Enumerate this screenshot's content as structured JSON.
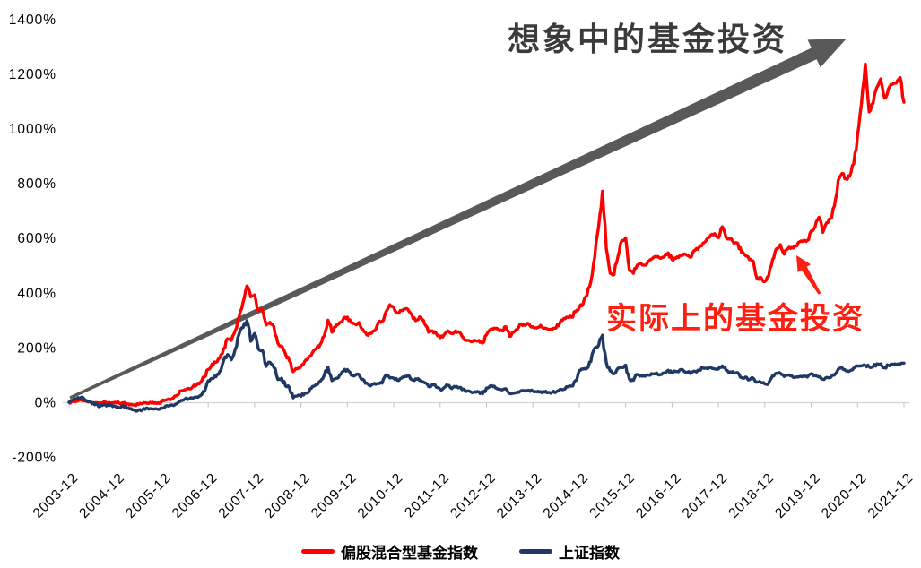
{
  "chart_data": {
    "type": "line",
    "title": "",
    "y_unit": "%",
    "ylim": [
      -200,
      1400
    ],
    "y_step": 200,
    "y_tick_labels": [
      "1400%",
      "1200%",
      "1000%",
      "800%",
      "600%",
      "400%",
      "200%",
      "0%",
      "-200%"
    ],
    "x_tick_labels": [
      "2003-12",
      "2004-12",
      "2005-12",
      "2006-12",
      "2007-12",
      "2008-12",
      "2009-12",
      "2010-12",
      "2011-12",
      "2012-12",
      "2013-12",
      "2014-12",
      "2015-12",
      "2016-12",
      "2017-12",
      "2018-12",
      "2019-12",
      "2020-12",
      "2021-12"
    ],
    "x_interval": "monthly",
    "x_start": "2003-12",
    "x_end": "2021-12",
    "grid": false,
    "legend_position": "bottom",
    "series": [
      {
        "name": "偏股混合型基金指数",
        "color": "#FF0000",
        "values": [
          0,
          3,
          7,
          9,
          5,
          1,
          -2,
          -1,
          -4,
          1,
          -3,
          -2,
          0,
          -4,
          -2,
          -6,
          -8,
          -10,
          -8,
          -5,
          -2,
          0,
          -4,
          -2,
          3,
          8,
          12,
          16,
          26,
          42,
          46,
          50,
          56,
          63,
          73,
          92,
          120,
          140,
          146,
          162,
          196,
          232,
          226,
          262,
          312,
          365,
          425,
          385,
          392,
          335,
          338,
          282,
          292,
          276,
          216,
          206,
          176,
          152,
          112,
          122,
          131,
          150,
          166,
          182,
          196,
          212,
          242,
          300,
          256,
          276,
          291,
          306,
          311,
          291,
          286,
          291,
          266,
          246,
          251,
          261,
          291,
          296,
          331,
          356,
          346,
          326,
          336,
          341,
          331,
          306,
          301,
          311,
          286,
          256,
          261,
          251,
          236,
          246,
          261,
          251,
          261,
          256,
          236,
          226,
          221,
          226,
          226,
          216,
          246,
          266,
          271,
          266,
          261,
          276,
          241,
          256,
          266,
          286,
          281,
          286,
          276,
          271,
          281,
          271,
          266,
          266,
          271,
          291,
          306,
          311,
          311,
          331,
          346,
          361,
          391,
          441,
          531,
          641,
          771,
          561,
          471,
          466,
          531,
          591,
          601,
          481,
          471,
          501,
          506,
          501,
          516,
          526,
          531,
          526,
          531,
          546,
          521,
          526,
          536,
          541,
          536,
          531,
          556,
          566,
          581,
          596,
          611,
          616,
          601,
          641,
          601,
          596,
          581,
          581,
          546,
          536,
          521,
          516,
          451,
          456,
          441,
          461,
          521,
          561,
          576,
          541,
          561,
          566,
          571,
          586,
          591,
          591,
          626,
          641,
          676,
          621,
          656,
          671,
          716,
          811,
          836,
          816,
          826,
          871,
          976,
          1091,
          1236,
          1061,
          1091,
          1151,
          1181,
          1111,
          1146,
          1161,
          1166,
          1186,
          1096
        ]
      },
      {
        "name": "上证指数",
        "color": "#1F3864",
        "values": [
          0,
          7,
          12,
          17,
          10,
          2,
          -6,
          -6,
          -15,
          -7,
          -11,
          -10,
          -15,
          -21,
          -12,
          -22,
          -23,
          -30,
          -28,
          -27,
          -21,
          -23,
          -25,
          -26,
          -22,
          -13,
          -13,
          -12,
          -4,
          7,
          12,
          12,
          14,
          19,
          25,
          39,
          79,
          87,
          93,
          113,
          153,
          174,
          155,
          194,
          249,
          273,
          298,
          223,
          251,
          194,
          190,
          131,
          146,
          127,
          83,
          88,
          60,
          54,
          16,
          23,
          22,
          33,
          37,
          58,
          66,
          77,
          98,
          128,
          79,
          87,
          99,
          115,
          119,
          99,
          98,
          101,
          84,
          70,
          60,
          69,
          69,
          70,
          100,
          89,
          88,
          80,
          88,
          95,
          96,
          81,
          84,
          80,
          71,
          58,
          66,
          55,
          47,
          53,
          62,
          50,
          56,
          54,
          48,
          41,
          37,
          39,
          38,
          31,
          52,
          60,
          59,
          48,
          45,
          49,
          32,
          33,
          38,
          43,
          41,
          44,
          41,
          38,
          39,
          37,
          36,
          37,
          37,
          47,
          47,
          56,
          59,
          79,
          116,
          121,
          124,
          149,
          198,
          208,
          245,
          145,
          114,
          104,
          124,
          127,
          136,
          83,
          80,
          101,
          97,
          95,
          99,
          103,
          107,
          101,
          107,
          117,
          107,
          112,
          118,
          115,
          110,
          108,
          113,
          117,
          125,
          124,
          127,
          122,
          121,
          133,
          117,
          111,
          108,
          108,
          90,
          92,
          82,
          88,
          74,
          72,
          67,
          69,
          97,
          106,
          106,
          94,
          99,
          96,
          92,
          94,
          96,
          92,
          104,
          99,
          92,
          84,
          91,
          90,
          99,
          121,
          126,
          115,
          115,
          125,
          132,
          133,
          134,
          130,
          130,
          140,
          140,
          126,
          135,
          139,
          137,
          139,
          143
        ]
      }
    ],
    "annotations": [
      {
        "id": "imagined",
        "text": "想象中的基金投资",
        "color": "#3B3B3B",
        "shape": "big-tapered-arrow-up-right",
        "arrow_color": "#595959"
      },
      {
        "id": "actual",
        "text": "实际上的基金投资",
        "color": "#FF1E0F",
        "shape": "small-arrow-pointing-to-red-line",
        "arrow_color": "#FF1E0F"
      }
    ]
  }
}
